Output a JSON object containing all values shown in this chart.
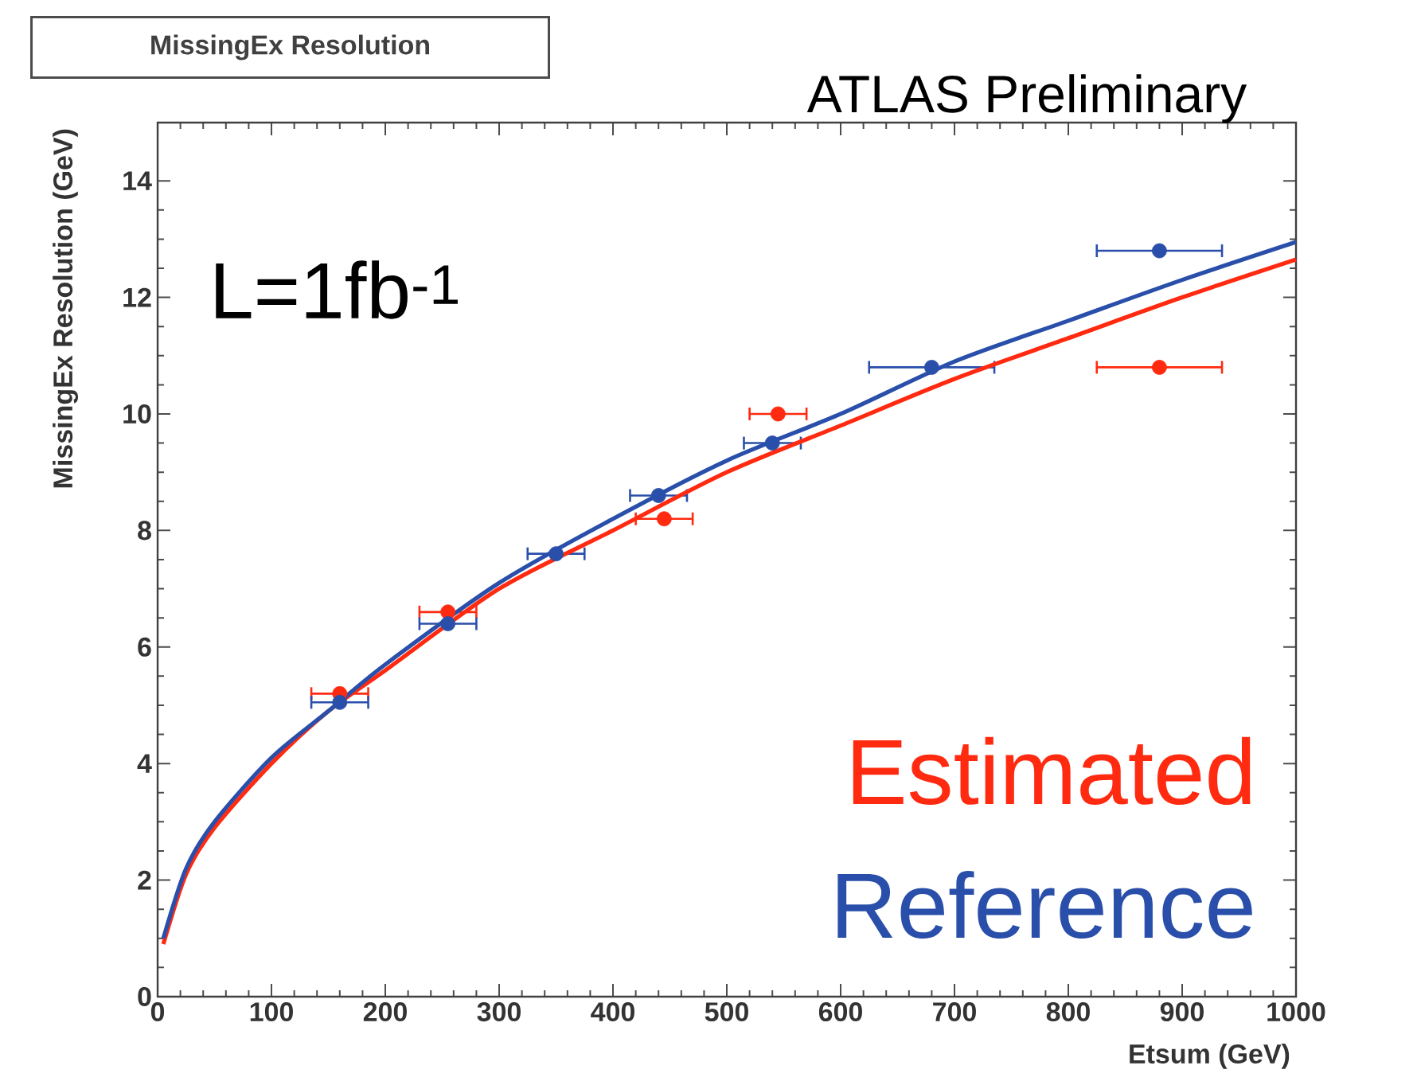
{
  "chart_data": {
    "type": "scatter",
    "title": "MissingEx Resolution",
    "xlabel": "Etsum (GeV)",
    "ylabel": "MissingEx Resolution (GeV)",
    "annotations": [
      "ATLAS Preliminary",
      "L=1fb$^{-1}$"
    ],
    "xlim": [
      0,
      1000
    ],
    "ylim": [
      0,
      15
    ],
    "xticks": [
      0,
      100,
      200,
      300,
      400,
      500,
      600,
      700,
      800,
      900,
      1000
    ],
    "yticks": [
      0,
      2,
      4,
      6,
      8,
      10,
      12,
      14
    ],
    "legend": "bottom right",
    "series": [
      {
        "name": "Estimated",
        "marker": "circle",
        "color": "#ff2a10",
        "x": [
          160,
          255,
          445,
          545,
          880
        ],
        "values": [
          5.2,
          6.6,
          8.2,
          10.0,
          10.8
        ],
        "xerrors": [
          25,
          25,
          25,
          25,
          55
        ]
      },
      {
        "name": "Reference",
        "marker": "circle",
        "color": "#2a4faa",
        "x": [
          160,
          255,
          350,
          440,
          540,
          680,
          880
        ],
        "values": [
          5.05,
          6.4,
          7.6,
          8.6,
          9.5,
          10.8,
          12.8
        ],
        "xerrors": [
          25,
          25,
          25,
          25,
          25,
          55,
          55
        ]
      },
      {
        "type": "line",
        "marker": "none",
        "line_style": "solid",
        "color": "#ff2a10",
        "x": [
          5,
          25,
          50,
          100,
          150,
          200,
          300,
          400,
          500,
          600,
          700,
          800,
          900,
          1000
        ],
        "values": [
          0.9,
          2.1,
          2.9,
          4.0,
          4.9,
          5.6,
          7.0,
          8.0,
          9.0,
          9.8,
          10.6,
          11.3,
          12.0,
          12.65
        ]
      },
      {
        "type": "line",
        "marker": "none",
        "line_style": "solid",
        "color": "#2a4faa",
        "x": [
          5,
          25,
          50,
          100,
          150,
          200,
          300,
          400,
          500,
          600,
          700,
          800,
          900,
          1000
        ],
        "values": [
          1.0,
          2.2,
          3.0,
          4.1,
          4.9,
          5.7,
          7.1,
          8.2,
          9.2,
          10.0,
          10.9,
          11.6,
          12.3,
          12.95
        ]
      }
    ]
  }
}
